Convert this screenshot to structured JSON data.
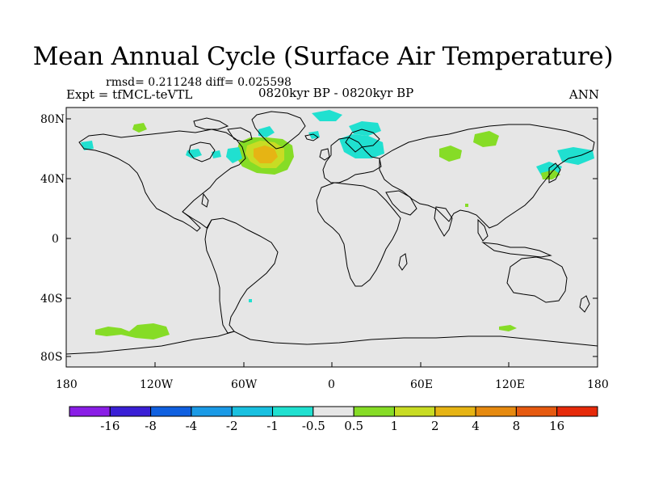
{
  "title": "Mean Annual Cycle (Surface Air Temperature)",
  "stats": "rmsd= 0.211248 diff= 0.025598",
  "experiment": "Expt = tfMCL-teVTL",
  "period": "0820kyr BP - 0820kyr BP",
  "season": "ANN",
  "lat_ticks": [
    "80N",
    "40N",
    "0",
    "40S",
    "80S"
  ],
  "lon_ticks": [
    "180",
    "120W",
    "60W",
    "0",
    "60E",
    "120E",
    "180"
  ],
  "legend": {
    "labels": [
      "-16",
      "-8",
      "-4",
      "-2",
      "-1",
      "-0.5",
      "0.5",
      "1",
      "2",
      "4",
      "8",
      "16"
    ],
    "colors": [
      "#8a1ee6",
      "#3a1fd6",
      "#1060e0",
      "#1a9ae6",
      "#19c0e0",
      "#20e0d0",
      "#e6e6e6",
      "#86dc26",
      "#c8dc24",
      "#e6b414",
      "#e68a10",
      "#e65a10",
      "#e62a0a"
    ]
  },
  "colors": {
    "ocean_land_bg": "#e6e6e6",
    "coast": "#000000"
  }
}
